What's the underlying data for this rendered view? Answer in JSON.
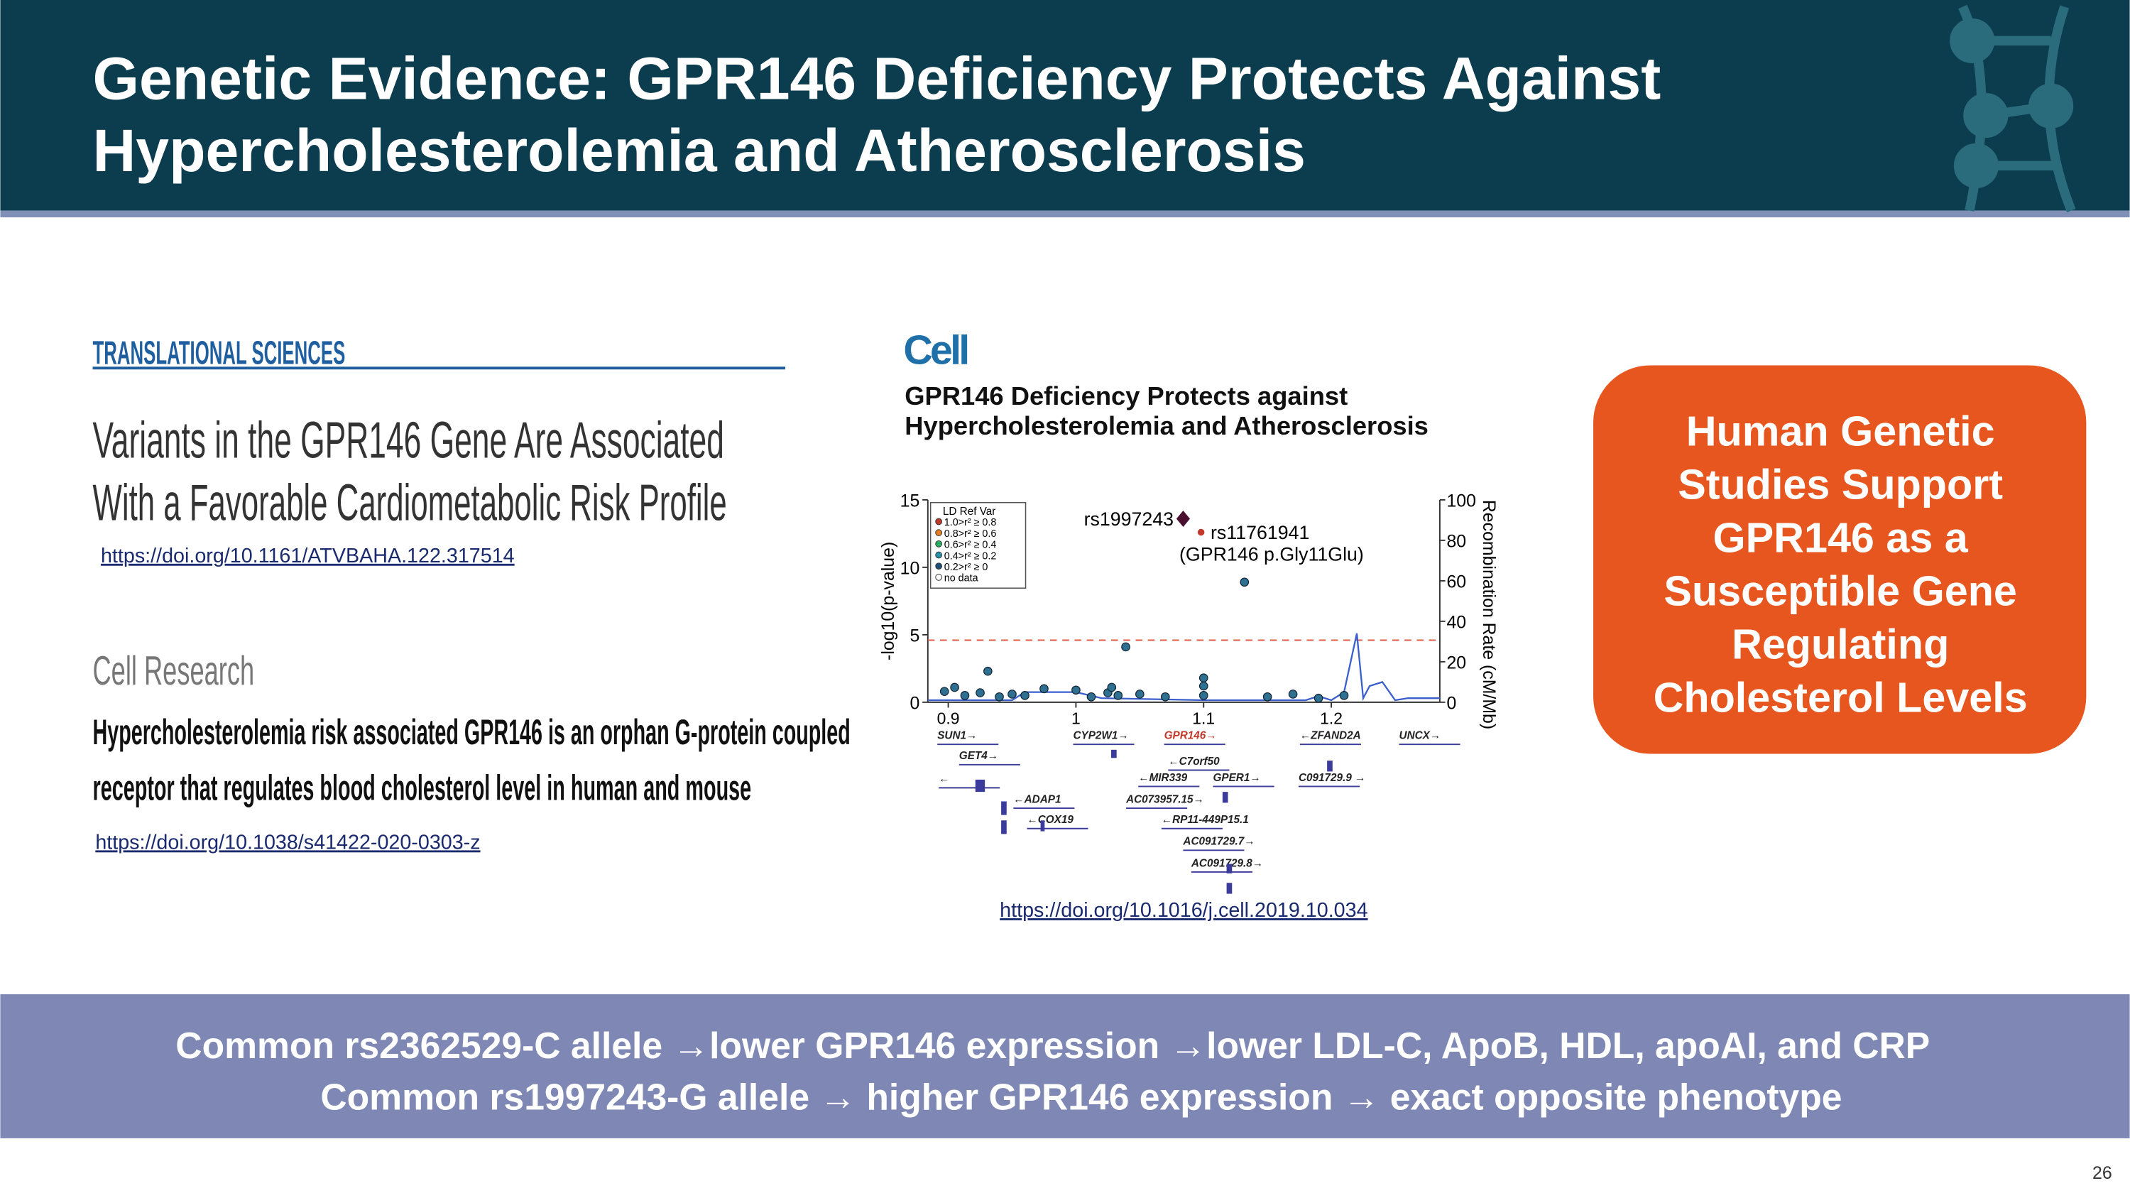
{
  "header": {
    "title": [
      "Genetic Evidence: GPR146 Deficiency Protects Against",
      "Hypercholesterolemia and Atherosclerosis"
    ]
  },
  "papers": [
    {
      "journal": "TRANSLATIONAL SCIENCES",
      "title": [
        "Variants in the GPR146 Gene Are Associated",
        "With a Favorable Cardiometabolic Risk Profile"
      ],
      "url": "https://doi.org/10.1161/ATVBAHA.122.317514"
    },
    {
      "journal": "Cell Research",
      "title": [
        "Hypercholesterolemia risk associated GPR146 is an orphan G-protein coupled",
        "receptor that regulates blood cholesterol level in human and mouse"
      ],
      "url": "https://doi.org/10.1038/s41422-020-0303-z"
    }
  ],
  "cell": {
    "journal": "Cell",
    "title": [
      "GPR146 Deficiency Protects against",
      "Hypercholesterolemia and Atherosclerosis"
    ],
    "url": "https://doi.org/10.1016/j.cell.2019.10.034",
    "plot": {
      "ylabel": "-log10(p-value)",
      "y2label": "Recombination Rate (cM/Mb)",
      "xlim": [
        0.884,
        1.285
      ],
      "xticks": [
        0.9,
        1,
        1.1,
        1.2
      ],
      "ylim": [
        0,
        15
      ],
      "yticks": [
        0,
        5,
        10,
        15
      ],
      "y2lim": [
        0,
        100
      ],
      "y2ticks": [
        0,
        20,
        40,
        60,
        80,
        100
      ],
      "threshold": 4.6,
      "legend": {
        "title": "LD Ref Var",
        "entries": [
          "1.0>r² ≥ 0.8",
          "0.8>r² ≥ 0.6",
          "0.6>r² ≥ 0.4",
          "0.4>r² ≥ 0.2",
          "0.2>r² ≥ 0",
          "no data"
        ],
        "colors": [
          "#c0392b",
          "#e67e22",
          "#27ae60",
          "#2c8fa8",
          "#1f4e79",
          "#ffffff"
        ]
      },
      "lead": {
        "label": "rs1997243",
        "x": 1.084,
        "y": 13.6
      },
      "variant": {
        "label": "rs11761941",
        "note": "(GPR146 p.Gly11Glu)",
        "x": 1.098,
        "y": 12.6
      },
      "points": {
        "color": "#2f6f8f",
        "x": [
          0.897,
          0.905,
          0.913,
          0.925,
          0.931,
          0.94,
          0.95,
          0.96,
          0.975,
          1.0,
          1.012,
          1.025,
          1.028,
          1.033,
          1.039,
          1.05,
          1.07,
          1.1,
          1.1,
          1.1,
          1.132,
          1.15,
          1.17,
          1.19,
          1.21
        ],
        "y": [
          0.8,
          1.1,
          0.5,
          0.7,
          2.3,
          0.4,
          0.6,
          0.5,
          1.0,
          0.9,
          0.4,
          0.7,
          1.1,
          0.5,
          4.1,
          0.6,
          0.4,
          1.8,
          1.2,
          0.5,
          8.9,
          0.4,
          0.6,
          0.3,
          0.5
        ]
      },
      "recombination": {
        "color": "#3a5fcd",
        "x": [
          0.884,
          0.95,
          0.96,
          0.97,
          1.0,
          1.02,
          1.1,
          1.18,
          1.19,
          1.2,
          1.21,
          1.22,
          1.225,
          1.23,
          1.24,
          1.25,
          1.26,
          1.285
        ],
        "y": [
          1,
          1,
          5,
          5,
          5,
          2,
          1,
          1,
          3,
          1,
          5,
          34,
          2,
          8,
          10,
          1,
          2,
          2
        ]
      },
      "genes": [
        "SUN1→",
        "GET4→",
        "←",
        "←ADAP1",
        "←COX19",
        "CYP2W1→",
        "GPR146→",
        "←C7orf50",
        "←MIR339",
        "GPER1→",
        "AC073957.15→",
        "←RP11-449P15.1",
        "AC091729.7→",
        "AC091729.8→",
        "←ZFAND2A",
        "UNCX→",
        "C091729.9 →"
      ]
    }
  },
  "callout": [
    "Human Genetic",
    "Studies Support",
    "GPR146 as a",
    "Susceptible Gene",
    "Regulating",
    "Cholesterol Levels"
  ],
  "footer": [
    "Common rs2362529-C allele →lower GPR146 expression →lower LDL-C, ApoB, HDL, apoAI, and CRP",
    "Common rs1997243-G allele → higher GPR146 expression → exact opposite phenotype"
  ],
  "page_number": "26"
}
